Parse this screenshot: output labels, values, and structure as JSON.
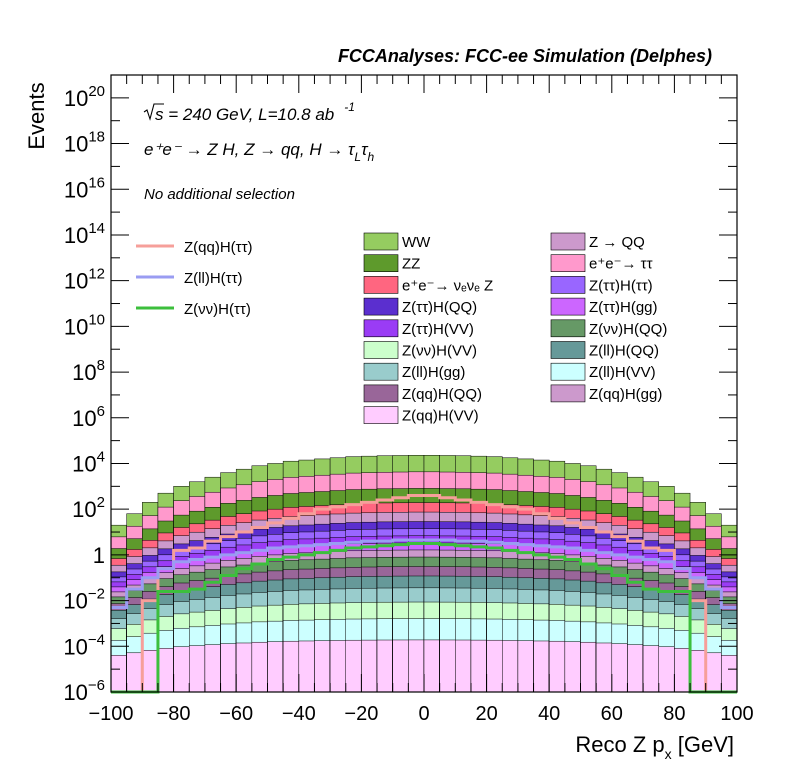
{
  "chart_data": {
    "type": "bar",
    "stacked": true,
    "title": "FCCAnalyses: FCC-ee Simulation (Delphes)",
    "xlabel_main": "Reco Z p",
    "xlabel_sub": "x",
    "xlabel_unit": " [GeV]",
    "ylabel": "Events",
    "xlim": [
      -100,
      100
    ],
    "ylim_exp": [
      -6,
      21
    ],
    "log_y": true,
    "grid": false,
    "x_ticks": [
      -100,
      -80,
      -60,
      -40,
      -20,
      0,
      20,
      40,
      60,
      80,
      100
    ],
    "y_ticks": [
      {
        "base": "10",
        "exp": "-6",
        "value": -6
      },
      {
        "base": "10",
        "exp": "-4",
        "value": -4
      },
      {
        "base": "10",
        "exp": "-2",
        "value": -2
      },
      {
        "base": "1",
        "exp": "",
        "value": 0
      },
      {
        "base": "10",
        "exp": "2",
        "value": 2
      },
      {
        "base": "10",
        "exp": "4",
        "value": 4
      },
      {
        "base": "10",
        "exp": "6",
        "value": 6
      },
      {
        "base": "10",
        "exp": "8",
        "value": 8
      },
      {
        "base": "10",
        "exp": "10",
        "value": 10
      },
      {
        "base": "10",
        "exp": "12",
        "value": 12
      },
      {
        "base": "10",
        "exp": "14",
        "value": 14
      },
      {
        "base": "10",
        "exp": "16",
        "value": 16
      },
      {
        "base": "10",
        "exp": "18",
        "value": 18
      },
      {
        "base": "10",
        "exp": "20",
        "value": 20
      }
    ],
    "annotations": {
      "sqrt_s": "s = 240 GeV, L=10.8 ab",
      "lumi_exp": "-1",
      "process": "e⁺e⁻ → Z H, Z → qq, H → τ",
      "process_sub1": "L",
      "process_tau": "τ",
      "process_sub2": "h",
      "selection": "No additional selection"
    },
    "legend_lines": [
      {
        "label": "Z(qq)H(ττ)",
        "color": "#f69f9a"
      },
      {
        "label": "Z(ll)H(ττ)",
        "color": "#9a9cf2"
      },
      {
        "label": "Z(νν)H(ττ)",
        "color": "#3cbf3c"
      }
    ],
    "legend_fills": [
      {
        "label": "WW",
        "color": "#95cc60"
      },
      {
        "label": "ZZ",
        "color": "#5e9a2c"
      },
      {
        "label": "e⁺e⁻→ νₑνₑ Z",
        "color": "#ff6680"
      },
      {
        "label": "Z(ττ)H(QQ)",
        "color": "#5b2fcf"
      },
      {
        "label": "Z(ττ)H(VV)",
        "color": "#9a3cf5"
      },
      {
        "label": "Z(νν)H(VV)",
        "color": "#ccffcc"
      },
      {
        "label": "Z(ll)H(gg)",
        "color": "#99cccc"
      },
      {
        "label": "Z(qq)H(QQ)",
        "color": "#996699"
      },
      {
        "label": "Z(qq)H(VV)",
        "color": "#ffccff"
      },
      {
        "label": "Z → QQ",
        "color": "#cc99cc"
      },
      {
        "label": "e⁺e⁻→ ττ",
        "color": "#ff99cc"
      },
      {
        "label": "Z(ττ)H(ττ)",
        "color": "#9966ff"
      },
      {
        "label": "Z(ττ)H(gg)",
        "color": "#cc66ff"
      },
      {
        "label": "Z(νν)H(QQ)",
        "color": "#669966"
      },
      {
        "label": "Z(ll)H(QQ)",
        "color": "#669999"
      },
      {
        "label": "Z(ll)H(VV)",
        "color": "#ccffff"
      },
      {
        "label": "Z(qq)H(gg)",
        "color": "#cc99cc"
      }
    ],
    "bin_centers": [
      -97.5,
      -92.5,
      -87.5,
      -82.5,
      -77.5,
      -72.5,
      -67.5,
      -62.5,
      -57.5,
      -52.5,
      -47.5,
      -42.5,
      -37.5,
      -32.5,
      -27.5,
      -22.5,
      -17.5,
      -12.5,
      -7.5,
      -2.5,
      2.5,
      7.5,
      12.5,
      17.5,
      22.5,
      27.5,
      32.5,
      37.5,
      42.5,
      47.5,
      52.5,
      57.5,
      62.5,
      67.5,
      72.5,
      77.5,
      82.5,
      87.5,
      92.5,
      97.5
    ],
    "stack_totals_log10": [
      1.3,
      1.8,
      2.3,
      2.7,
      3.0,
      3.2,
      3.4,
      3.6,
      3.75,
      3.9,
      4.0,
      4.1,
      4.15,
      4.2,
      4.25,
      4.3,
      4.32,
      4.34,
      4.35,
      4.36,
      4.36,
      4.35,
      4.34,
      4.32,
      4.3,
      4.25,
      4.2,
      4.15,
      4.1,
      4.0,
      3.9,
      3.75,
      3.6,
      3.4,
      3.2,
      3.0,
      2.7,
      2.3,
      1.8,
      1.3
    ],
    "series_lines": [
      {
        "name": "Z(qq)H(ττ)",
        "log10_values": [
          -6,
          -6,
          -2,
          -0.6,
          0.2,
          0.3,
          0.6,
          0.8,
          1.0,
          1.2,
          1.4,
          1.6,
          1.8,
          2.0,
          2.1,
          2.2,
          2.3,
          2.4,
          2.5,
          2.6,
          2.6,
          2.5,
          2.4,
          2.3,
          2.2,
          2.1,
          2.0,
          1.8,
          1.6,
          1.4,
          1.2,
          1.0,
          0.8,
          0.6,
          0.3,
          0.2,
          -0.6,
          -2,
          -6,
          -6
        ]
      },
      {
        "name": "Z(ll)H(ττ)",
        "log10_values": [
          -2.3,
          -1.5,
          -1.0,
          -0.6,
          -0.3,
          -0.2,
          -0.1,
          0.0,
          0.1,
          0.2,
          0.3,
          0.35,
          0.4,
          0.45,
          0.5,
          0.55,
          0.6,
          0.6,
          0.65,
          0.65,
          0.65,
          0.65,
          0.6,
          0.6,
          0.55,
          0.5,
          0.45,
          0.4,
          0.35,
          0.3,
          0.2,
          0.1,
          0.0,
          -0.1,
          -0.2,
          -0.3,
          -0.6,
          -1.0,
          -1.5,
          -2.3
        ]
      },
      {
        "name": "Z(νν)H(ττ)",
        "log10_values": [
          -6,
          -6,
          -6,
          -1.6,
          -1.6,
          -1.5,
          -1.2,
          -0.9,
          -0.6,
          -0.4,
          -0.2,
          -0.1,
          0.0,
          0.1,
          0.2,
          0.3,
          0.35,
          0.4,
          0.45,
          0.5,
          0.5,
          0.45,
          0.4,
          0.35,
          0.3,
          0.2,
          0.1,
          0.0,
          -0.1,
          -0.2,
          -0.4,
          -0.6,
          -0.9,
          -1.2,
          -1.5,
          -1.6,
          -1.6,
          -6,
          -6,
          -6
        ]
      }
    ]
  }
}
